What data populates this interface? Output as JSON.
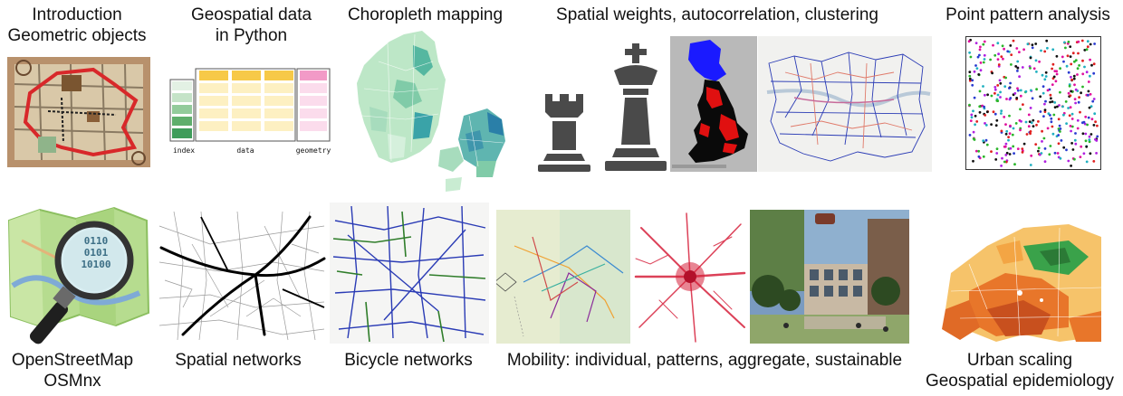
{
  "top_row": {
    "intro": {
      "line1": "Introduction",
      "line2": "Geometric objects"
    },
    "geodata": {
      "line1": "Geospatial data",
      "line2": "in Python"
    },
    "choropleth": {
      "line1": "Choropleth mapping"
    },
    "weights": {
      "line1": "Spatial weights, autocorrelation, clustering"
    },
    "points": {
      "line1": "Point pattern analysis"
    }
  },
  "bottom_row": {
    "osm": {
      "line1": "OpenStreetMap",
      "line2": "OSMnx"
    },
    "networks": {
      "line1": "Spatial networks"
    },
    "bicycle": {
      "line1": "Bicycle networks"
    },
    "mobility": {
      "line1": "Mobility: individual, patterns, aggregate, sustainable"
    },
    "scaling": {
      "line1": "Urban scaling",
      "line2": "Geospatial epidemiology"
    }
  },
  "table_labels": {
    "index": "index",
    "data": "data",
    "geometry": "geometry"
  },
  "magnifier_text": {
    "row1": "0110",
    "row2": "0101",
    "row3": "10100"
  },
  "colors": {
    "index_green": "#3f9c5a",
    "data_yellow": "#f7c948",
    "geometry_pink": "#f29ac7",
    "choropleth_light": "#c9ecd2",
    "choropleth_dark": "#2a7fa8",
    "network_blue": "#2a3bb5",
    "network_green": "#2f7d2a",
    "mobility_red": "#d6203b",
    "heat_orange": "#e8762a"
  }
}
